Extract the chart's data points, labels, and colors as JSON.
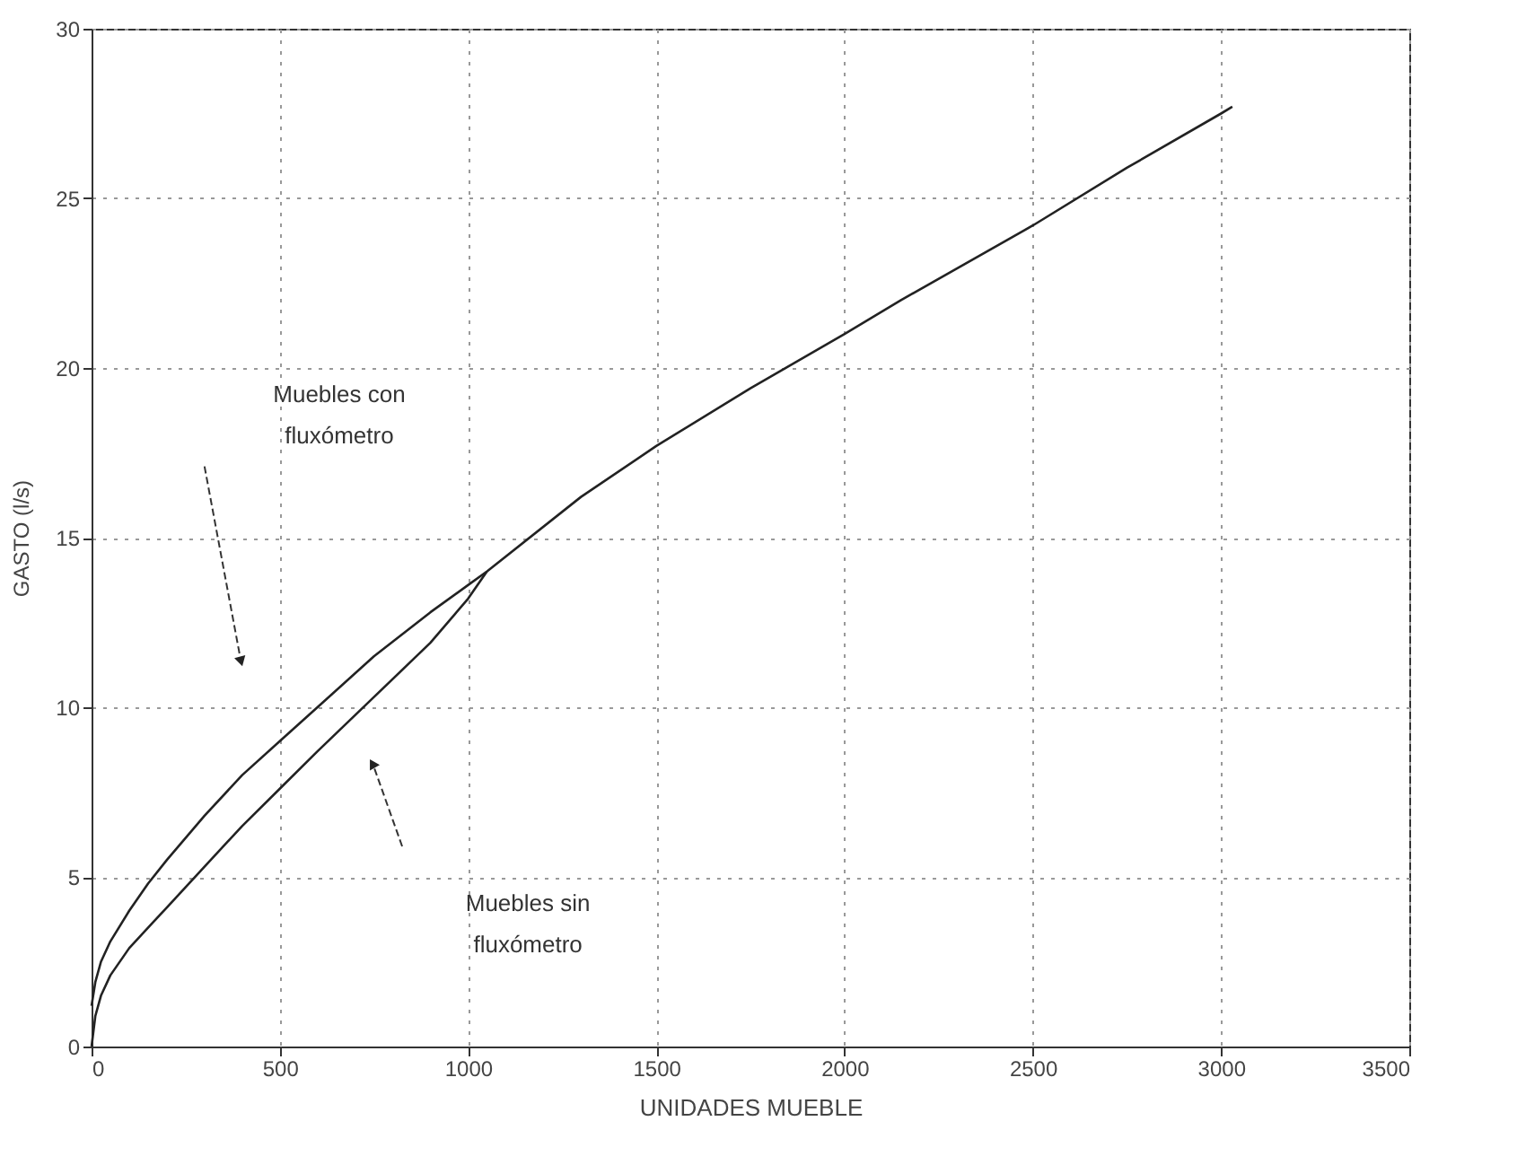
{
  "chart_data": {
    "type": "line",
    "xlabel": "UNIDADES MUEBLE",
    "ylabel": "GASTO (l/s)",
    "series": [
      {
        "color": "#222222",
        "x": [
          0,
          10,
          25,
          50,
          100,
          150,
          200,
          300,
          400,
          500,
          600,
          750,
          900,
          1000,
          1050,
          1300,
          1500,
          1750,
          2000,
          2150,
          2500,
          2750,
          3000,
          3030
        ],
        "values": [
          1.2,
          1.9,
          2.5,
          3.1,
          4.0,
          4.8,
          5.5,
          6.8,
          8.0,
          9.0,
          10.0,
          11.5,
          12.8,
          13.6,
          14.0,
          16.2,
          17.7,
          19.4,
          21.0,
          22.0,
          24.2,
          25.9,
          27.5,
          27.7
        ]
      },
      {
        "color": "#222222",
        "x": [
          0,
          10,
          25,
          50,
          100,
          150,
          200,
          300,
          400,
          500,
          600,
          750,
          900,
          1000,
          1050
        ],
        "values": [
          0,
          0.9,
          1.5,
          2.1,
          2.9,
          3.5,
          4.1,
          5.3,
          6.5,
          7.6,
          8.7,
          10.3,
          11.9,
          13.2,
          14.0
        ]
      }
    ],
    "annotations": [
      "Muebles con fluxómetro",
      "Muebles sin fluxómetro"
    ],
    "xlim": [
      0,
      3500
    ],
    "xticks": [
      0,
      500,
      1000,
      1500,
      2000,
      2500,
      3000,
      3500
    ],
    "ylim": [
      0,
      30
    ],
    "yticks": [
      0,
      5,
      10,
      15,
      20,
      25,
      30
    ],
    "grid": true,
    "marker": "none",
    "line_style": "solid"
  }
}
